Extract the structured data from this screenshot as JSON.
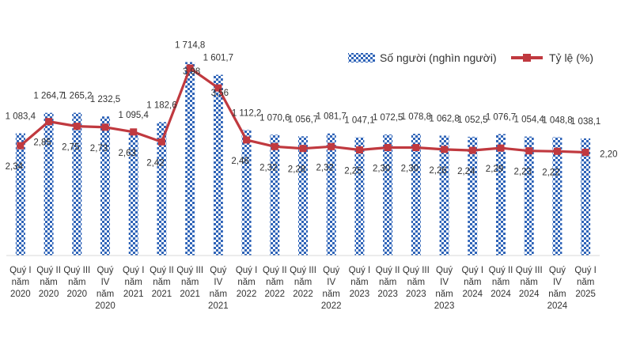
{
  "chart_data": {
    "type": "bar",
    "title": "",
    "xlabel": "",
    "ylabel": "",
    "legend_position": "top-right",
    "colors": {
      "bar": "#2f64b8",
      "bar_light": "#ffffff",
      "line": "#c0393f",
      "axis": "#d9d9d9"
    },
    "categories": [
      [
        "Quý I",
        "năm",
        "2020"
      ],
      [
        "Quý II",
        "năm",
        "2020"
      ],
      [
        "Quý III",
        "năm",
        "2020"
      ],
      [
        "Quý",
        "IV",
        "năm",
        "2020"
      ],
      [
        "Quý I",
        "năm",
        "2021"
      ],
      [
        "Quý II",
        "năm",
        "2021"
      ],
      [
        "Quý III",
        "năm",
        "2021"
      ],
      [
        "Quý",
        "IV",
        "năm",
        "2021"
      ],
      [
        "Quý I",
        "năm",
        "2022"
      ],
      [
        "Quý II",
        "năm",
        "2022"
      ],
      [
        "Quý III",
        "năm",
        "2022"
      ],
      [
        "Quý",
        "IV",
        "năm",
        "2022"
      ],
      [
        "Quý I",
        "năm",
        "2023"
      ],
      [
        "Quý II",
        "năm",
        "2023"
      ],
      [
        "Quý III",
        "năm",
        "2023"
      ],
      [
        "Quý",
        "IV",
        "năm",
        "2023"
      ],
      [
        "Quý I",
        "năm",
        "2024"
      ],
      [
        "Quý II",
        "năm",
        "2024"
      ],
      [
        "Quý III",
        "năm",
        "2024"
      ],
      [
        "Quý",
        "IV",
        "năm",
        "2024"
      ],
      [
        "Quý I",
        "năm",
        "2025"
      ]
    ],
    "series": [
      {
        "name": "Số người (nghìn người)",
        "type": "bar",
        "values": [
          1083.4,
          1264.7,
          1265.2,
          1232.5,
          1095.4,
          1182.6,
          1714.8,
          1601.7,
          1112.2,
          1070.6,
          1056.7,
          1081.7,
          1047.1,
          1072.5,
          1078.8,
          1062.8,
          1052.5,
          1076.7,
          1054.4,
          1048.8,
          1038.1
        ],
        "labels": [
          "1 083,4",
          "1 264,7",
          "1 265,2",
          "1 232,5",
          "1 095,4",
          "1 182,6",
          "1 714,8",
          "1 601,7",
          "1 112,2",
          "1 070,6",
          "1 056,7",
          "1 081,7",
          "1 047,1",
          "1 072,5",
          "1 078,8",
          "1 062,8",
          "1 052,5",
          "1 076,7",
          "1 054,4",
          "1 048,8",
          "1 038,1"
        ]
      },
      {
        "name": "Tỷ lệ (%)",
        "type": "line",
        "values": [
          2.34,
          2.85,
          2.75,
          2.73,
          2.63,
          2.42,
          3.98,
          3.56,
          2.46,
          2.32,
          2.28,
          2.32,
          2.25,
          2.3,
          2.3,
          2.26,
          2.24,
          2.29,
          2.23,
          2.22,
          2.2
        ],
        "labels": [
          "2,34",
          "2,85",
          "2,75",
          "2,73",
          "2,63",
          "2,42",
          "3,98",
          "3,56",
          "2,46",
          "2,32",
          "2,28",
          "2,32",
          "2,25",
          "2,30",
          "2,30",
          "2,26",
          "2,24",
          "2,29",
          "2,23",
          "2,22",
          "2,20"
        ]
      }
    ],
    "bar_axis_range": [
      0,
      1900
    ],
    "rate_axis_range": [
      0,
      4.5
    ]
  }
}
